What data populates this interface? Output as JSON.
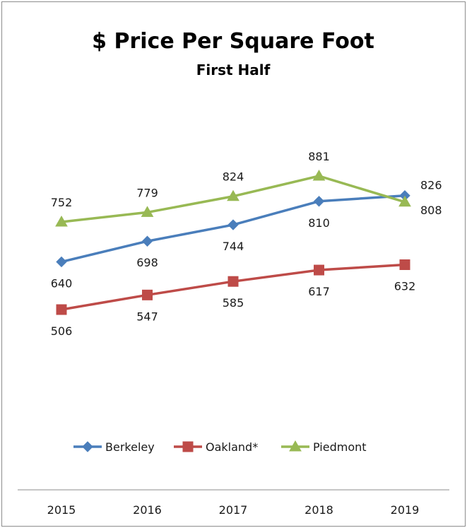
{
  "chart_data": {
    "type": "line",
    "title": "$ Price Per Square Foot",
    "subtitle": "First Half",
    "xlabel": "",
    "ylabel": "",
    "x": [
      "2015",
      "2016",
      "2017",
      "2018",
      "2019"
    ],
    "ylim": [
      420,
      960
    ],
    "legend_position": "bottom",
    "grid": false,
    "series": [
      {
        "name": "Berkeley",
        "values": [
          640,
          698,
          744,
          810,
          826
        ],
        "color": "#4a7ebb",
        "marker": "diamond"
      },
      {
        "name": "Oakland*",
        "values": [
          506,
          547,
          585,
          617,
          632
        ],
        "color": "#be4b48",
        "marker": "square"
      },
      {
        "name": "Piedmont",
        "values": [
          752,
          779,
          824,
          881,
          808
        ],
        "color": "#98b954",
        "marker": "triangle"
      }
    ]
  }
}
